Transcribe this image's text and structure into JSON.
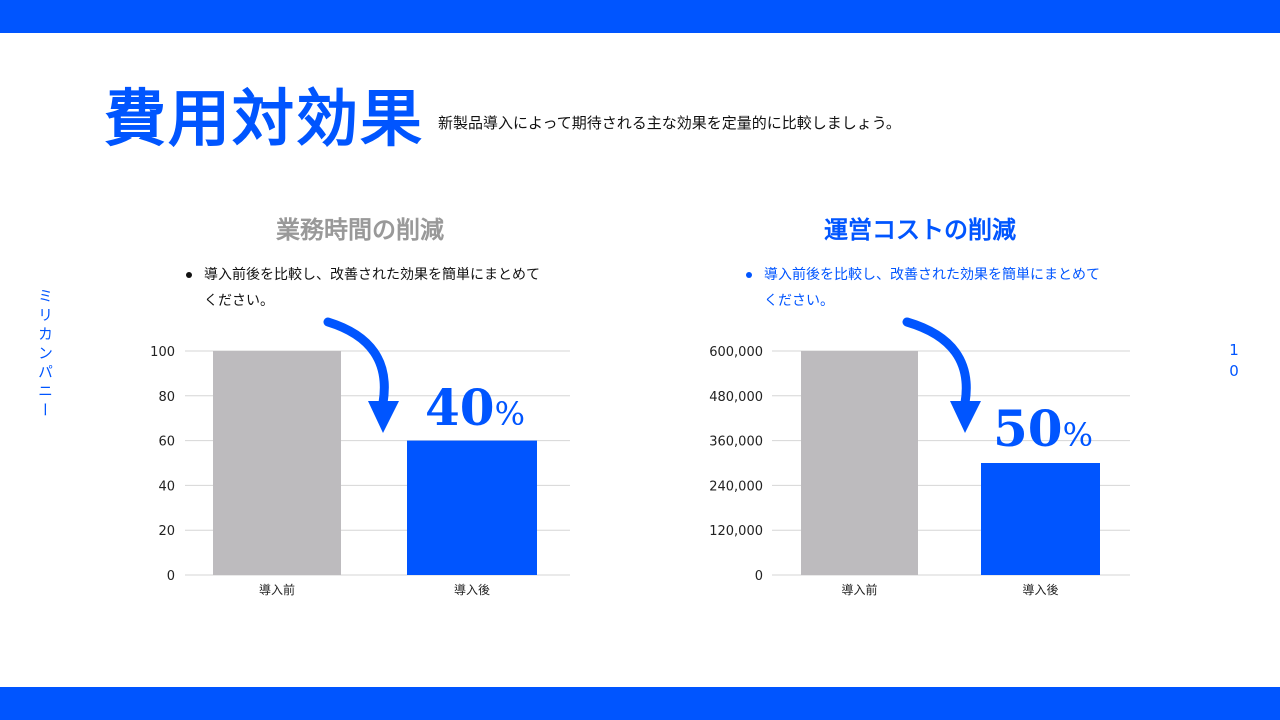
{
  "title": "費用対効果",
  "subtitle": "新製品導入によって期待される主な効果を定量的に比較しましょう。",
  "side_text": "ミリカンパニー",
  "page_number": "10",
  "colors": {
    "accent": "#0055FF",
    "before_bar": "#BDBBBE",
    "grid": "#D6D6D6"
  },
  "sections": [
    {
      "title": "業務時間の削減",
      "title_color": "#999999",
      "bullet": "導入前後を比較し、改善された効果を簡単にまとめてください。",
      "bullet_color": "#111111",
      "reduction": "40",
      "percent_sign": "%"
    },
    {
      "title": "運営コストの削減",
      "title_color": "#0055FF",
      "bullet": "導入前後を比較し、改善された効果を簡単にまとめてください。",
      "bullet_color": "#0055FF",
      "reduction": "50",
      "percent_sign": "%"
    }
  ],
  "chart_data": [
    {
      "type": "bar",
      "categories": [
        "導入前",
        "導入後"
      ],
      "values": [
        100,
        60
      ],
      "ylim": [
        0,
        100
      ],
      "yticks": [
        "0",
        "20",
        "40",
        "60",
        "80",
        "100"
      ],
      "grid": true
    },
    {
      "type": "bar",
      "categories": [
        "導入前",
        "導入後"
      ],
      "values": [
        600000,
        300000
      ],
      "ylim": [
        0,
        600000
      ],
      "yticks": [
        "0",
        "120,000",
        "240,000",
        "360,000",
        "480,000",
        "600,000"
      ],
      "grid": true
    }
  ]
}
